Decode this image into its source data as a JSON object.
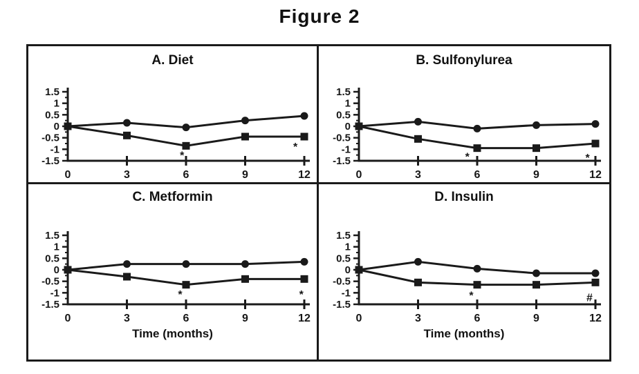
{
  "figure_title": "Figure 2",
  "colors": {
    "ink": "#1a1a1a",
    "background": "#ffffff"
  },
  "chart_data": [
    {
      "type": "line",
      "panel_label": "A",
      "title": "A. Diet",
      "xlabel": "",
      "ylabel": "",
      "x": [
        0,
        3,
        6,
        9,
        12
      ],
      "x_ticks": [
        0,
        3,
        6,
        9,
        12
      ],
      "y_ticks": [
        1.5,
        1,
        0.5,
        0,
        -0.5,
        -1,
        -1.5
      ],
      "y_tick_labels": [
        "1.5",
        "1",
        "0.5",
        "0",
        "-0.5",
        "-1",
        "-1.5"
      ],
      "xlim": [
        0,
        12
      ],
      "ylim": [
        -1.5,
        1.5
      ],
      "grid": false,
      "legend": "none",
      "series": [
        {
          "name": "filled-circle-series",
          "marker": "circle",
          "values": [
            0,
            0.15,
            -0.05,
            0.25,
            0.45
          ]
        },
        {
          "name": "filled-square-series",
          "marker": "square",
          "values": [
            0,
            -0.4,
            -0.85,
            -0.45,
            -0.45
          ]
        }
      ],
      "annotations": [
        {
          "text": "*",
          "x": 5.8,
          "y": -1.1
        },
        {
          "text": "*",
          "x": 11.55,
          "y": -0.72
        }
      ]
    },
    {
      "type": "line",
      "panel_label": "B",
      "title": "B. Sulfonylurea",
      "xlabel": "",
      "ylabel": "",
      "x": [
        0,
        3,
        6,
        9,
        12
      ],
      "x_ticks": [
        0,
        3,
        6,
        9,
        12
      ],
      "y_ticks": [
        1.5,
        1,
        0.5,
        0,
        -0.5,
        -1,
        -1.5
      ],
      "y_tick_labels": [
        "1.5",
        "1",
        "0.5",
        "0",
        "-0.5",
        "-1",
        "-1.5"
      ],
      "xlim": [
        0,
        12
      ],
      "ylim": [
        -1.5,
        1.5
      ],
      "grid": false,
      "legend": "none",
      "series": [
        {
          "name": "filled-circle-series",
          "marker": "circle",
          "values": [
            0,
            0.2,
            -0.1,
            0.05,
            0.1
          ]
        },
        {
          "name": "filled-square-series",
          "marker": "square",
          "values": [
            0,
            -0.55,
            -0.95,
            -0.95,
            -0.75
          ]
        }
      ],
      "annotations": [
        {
          "text": "*",
          "x": 5.5,
          "y": -1.15
        },
        {
          "text": "*",
          "x": 11.6,
          "y": -1.2
        }
      ]
    },
    {
      "type": "line",
      "panel_label": "C",
      "title": "C. Metformin",
      "xlabel": "Time (months)",
      "ylabel": "",
      "x": [
        0,
        3,
        6,
        9,
        12
      ],
      "x_ticks": [
        0,
        3,
        6,
        9,
        12
      ],
      "y_ticks": [
        1.5,
        1,
        0.5,
        0,
        -0.5,
        -1,
        -1.5
      ],
      "y_tick_labels": [
        "1.5",
        "1",
        "0.5",
        "0",
        "-0.5",
        "-1",
        "-1.5"
      ],
      "xlim": [
        0,
        12
      ],
      "ylim": [
        -1.5,
        1.5
      ],
      "grid": false,
      "legend": "none",
      "series": [
        {
          "name": "filled-circle-series",
          "marker": "circle",
          "values": [
            0,
            0.25,
            0.25,
            0.25,
            0.35
          ]
        },
        {
          "name": "filled-square-series",
          "marker": "square",
          "values": [
            0,
            -0.3,
            -0.65,
            -0.4,
            -0.4
          ]
        }
      ],
      "annotations": [
        {
          "text": "*",
          "x": 5.7,
          "y": -0.9
        },
        {
          "text": "*",
          "x": 11.85,
          "y": -0.9
        }
      ]
    },
    {
      "type": "line",
      "panel_label": "D",
      "title": "D. Insulin",
      "xlabel": "Time (months)",
      "ylabel": "",
      "x": [
        0,
        3,
        6,
        9,
        12
      ],
      "x_ticks": [
        0,
        3,
        6,
        9,
        12
      ],
      "y_ticks": [
        1.5,
        1,
        0.5,
        0,
        -0.5,
        -1,
        -1.5
      ],
      "y_tick_labels": [
        "1.5",
        "1",
        "0.5",
        "0",
        "-0.5",
        "-1",
        "-1.5"
      ],
      "xlim": [
        0,
        12
      ],
      "ylim": [
        -1.5,
        1.5
      ],
      "grid": false,
      "legend": "none",
      "series": [
        {
          "name": "filled-circle-series",
          "marker": "circle",
          "values": [
            0,
            0.35,
            0.05,
            -0.15,
            -0.15
          ]
        },
        {
          "name": "filled-square-series",
          "marker": "square",
          "values": [
            0,
            -0.55,
            -0.65,
            -0.65,
            -0.55
          ]
        }
      ],
      "annotations": [
        {
          "text": "*",
          "x": 5.7,
          "y": -0.95
        },
        {
          "text": "#",
          "x": 11.7,
          "y": -1.22
        }
      ]
    }
  ]
}
